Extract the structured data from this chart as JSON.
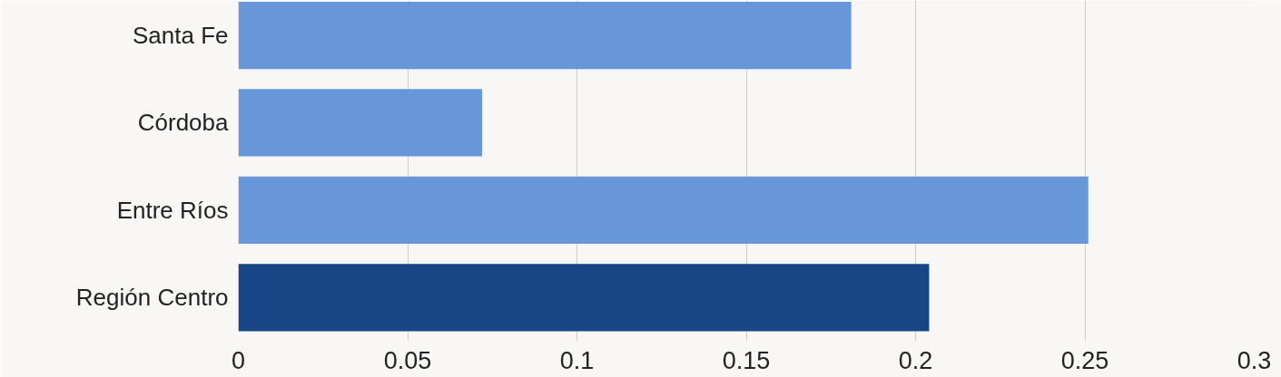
{
  "chart_data": {
    "type": "bar",
    "orientation": "horizontal",
    "categories": [
      "Santa Fe",
      "Córdoba",
      "Entre Ríos",
      "Región Centro"
    ],
    "values": [
      0.181,
      0.072,
      0.251,
      0.204
    ],
    "colors": [
      "#6797d9",
      "#6797d9",
      "#6797d9",
      "#174585"
    ],
    "xlim": [
      0,
      0.3
    ],
    "xticks": [
      0,
      0.05,
      0.1,
      0.15,
      0.2,
      0.25,
      0.3
    ],
    "grid": "x"
  }
}
